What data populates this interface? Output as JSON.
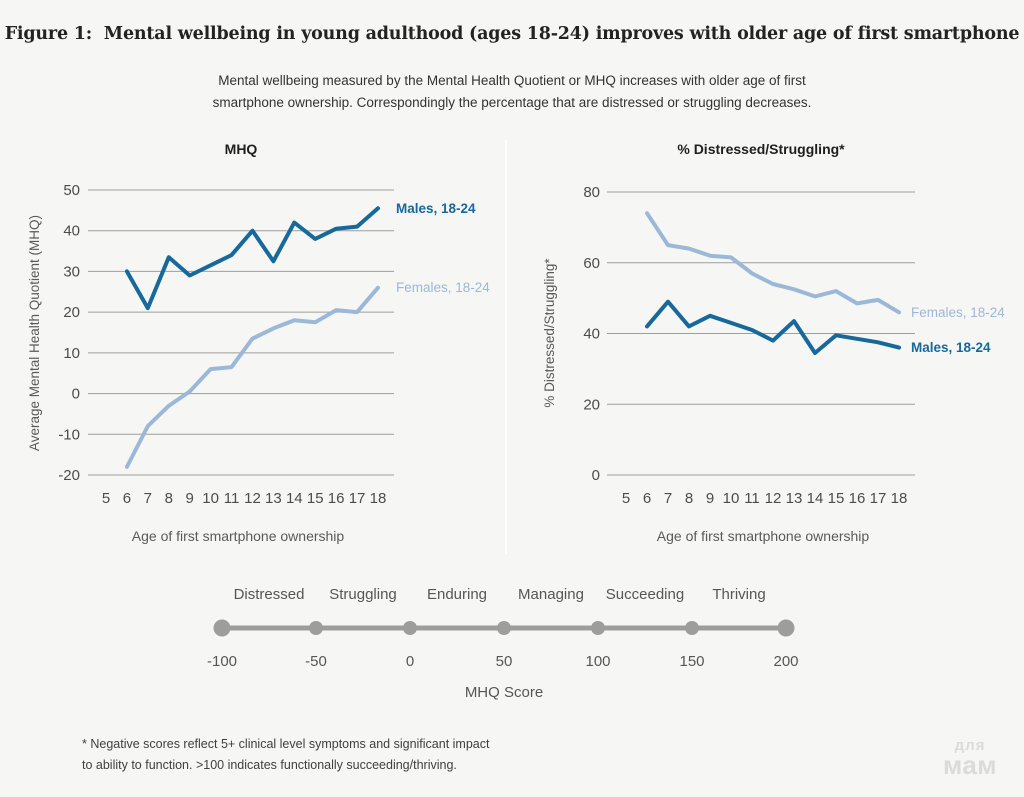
{
  "page": {
    "background": "#f6f6f4",
    "watermark": {
      "line1": "для",
      "line2": "мам"
    }
  },
  "figure": {
    "title": "Figure 1:  Mental wellbeing in young adulthood (ages 18-24) improves with older age of first smartphone",
    "subtitle": "Mental wellbeing measured by the Mental Health Quotient or MHQ increases with older age of first smartphone ownership. Correspondingly the percentage that are distressed or struggling decreases.",
    "footnote_line1": "* Negative scores reflect 5+ clinical level symptoms and significant impact",
    "footnote_line2": "to ability to function. >100 indicates functionally succeeding/thriving."
  },
  "colors": {
    "males": "#17699c",
    "females": "#9cb8d8",
    "grid": "#9e9e9e",
    "tick_text": "#4c4c4c",
    "axis_text": "#5a5a5a",
    "scale_gray": "#9d9d9d",
    "scale_text": "#565656"
  },
  "chart_data": [
    {
      "type": "line",
      "title": "MHQ",
      "ylabel": "Average Mental Health Quotient (MHQ)",
      "xlabel": "Age of first smartphone ownership",
      "xticks": [
        5,
        6,
        7,
        8,
        9,
        10,
        11,
        12,
        13,
        14,
        15,
        16,
        17,
        18
      ],
      "yticks": [
        50,
        40,
        30,
        20,
        10,
        0,
        -10,
        -20
      ],
      "ylim": [
        -20,
        50
      ],
      "grid": true,
      "legend_position": "end-of-line",
      "x": [
        6,
        7,
        8,
        9,
        10,
        11,
        12,
        13,
        14,
        15,
        16,
        17,
        18
      ],
      "series": [
        {
          "name": "Males, 18-24",
          "color_key": "males",
          "bold_label": true,
          "values": [
            30,
            21,
            33.5,
            29,
            31.5,
            34,
            40,
            32.5,
            42,
            38,
            40.5,
            41,
            45.5
          ]
        },
        {
          "name": "Females, 18-24",
          "color_key": "females",
          "bold_label": false,
          "values": [
            -18,
            -8,
            -3,
            0.5,
            6,
            6.5,
            13.5,
            16,
            18,
            17.5,
            20.5,
            20,
            26
          ]
        }
      ]
    },
    {
      "type": "line",
      "title": "% Distressed/Struggling*",
      "ylabel": "% Distressed/Struggling*",
      "xlabel": "Age of first smartphone ownership",
      "xticks": [
        5,
        6,
        7,
        8,
        9,
        10,
        11,
        12,
        13,
        14,
        15,
        16,
        17,
        18
      ],
      "yticks": [
        80,
        60,
        40,
        20,
        0
      ],
      "ylim": [
        0,
        80
      ],
      "grid": true,
      "legend_position": "end-of-line",
      "x": [
        6,
        7,
        8,
        9,
        10,
        11,
        12,
        13,
        14,
        15,
        16,
        17,
        18
      ],
      "series": [
        {
          "name": "Females, 18-24",
          "color_key": "females",
          "bold_label": false,
          "values": [
            74,
            65,
            64,
            62,
            61.5,
            57,
            54,
            52.5,
            50.5,
            52,
            48.5,
            49.5,
            46
          ]
        },
        {
          "name": "Males, 18-24",
          "color_key": "males",
          "bold_label": true,
          "values": [
            42,
            49,
            42,
            45,
            43,
            41,
            38,
            43.5,
            34.5,
            39.5,
            38.5,
            37.5,
            36
          ]
        }
      ]
    }
  ],
  "scale": {
    "categories": [
      "Distressed",
      "Struggling",
      "Enduring",
      "Managing",
      "Succeeding",
      "Thriving"
    ],
    "ticks": [
      -100,
      -50,
      0,
      50,
      100,
      150,
      200
    ],
    "caption": "MHQ Score"
  }
}
